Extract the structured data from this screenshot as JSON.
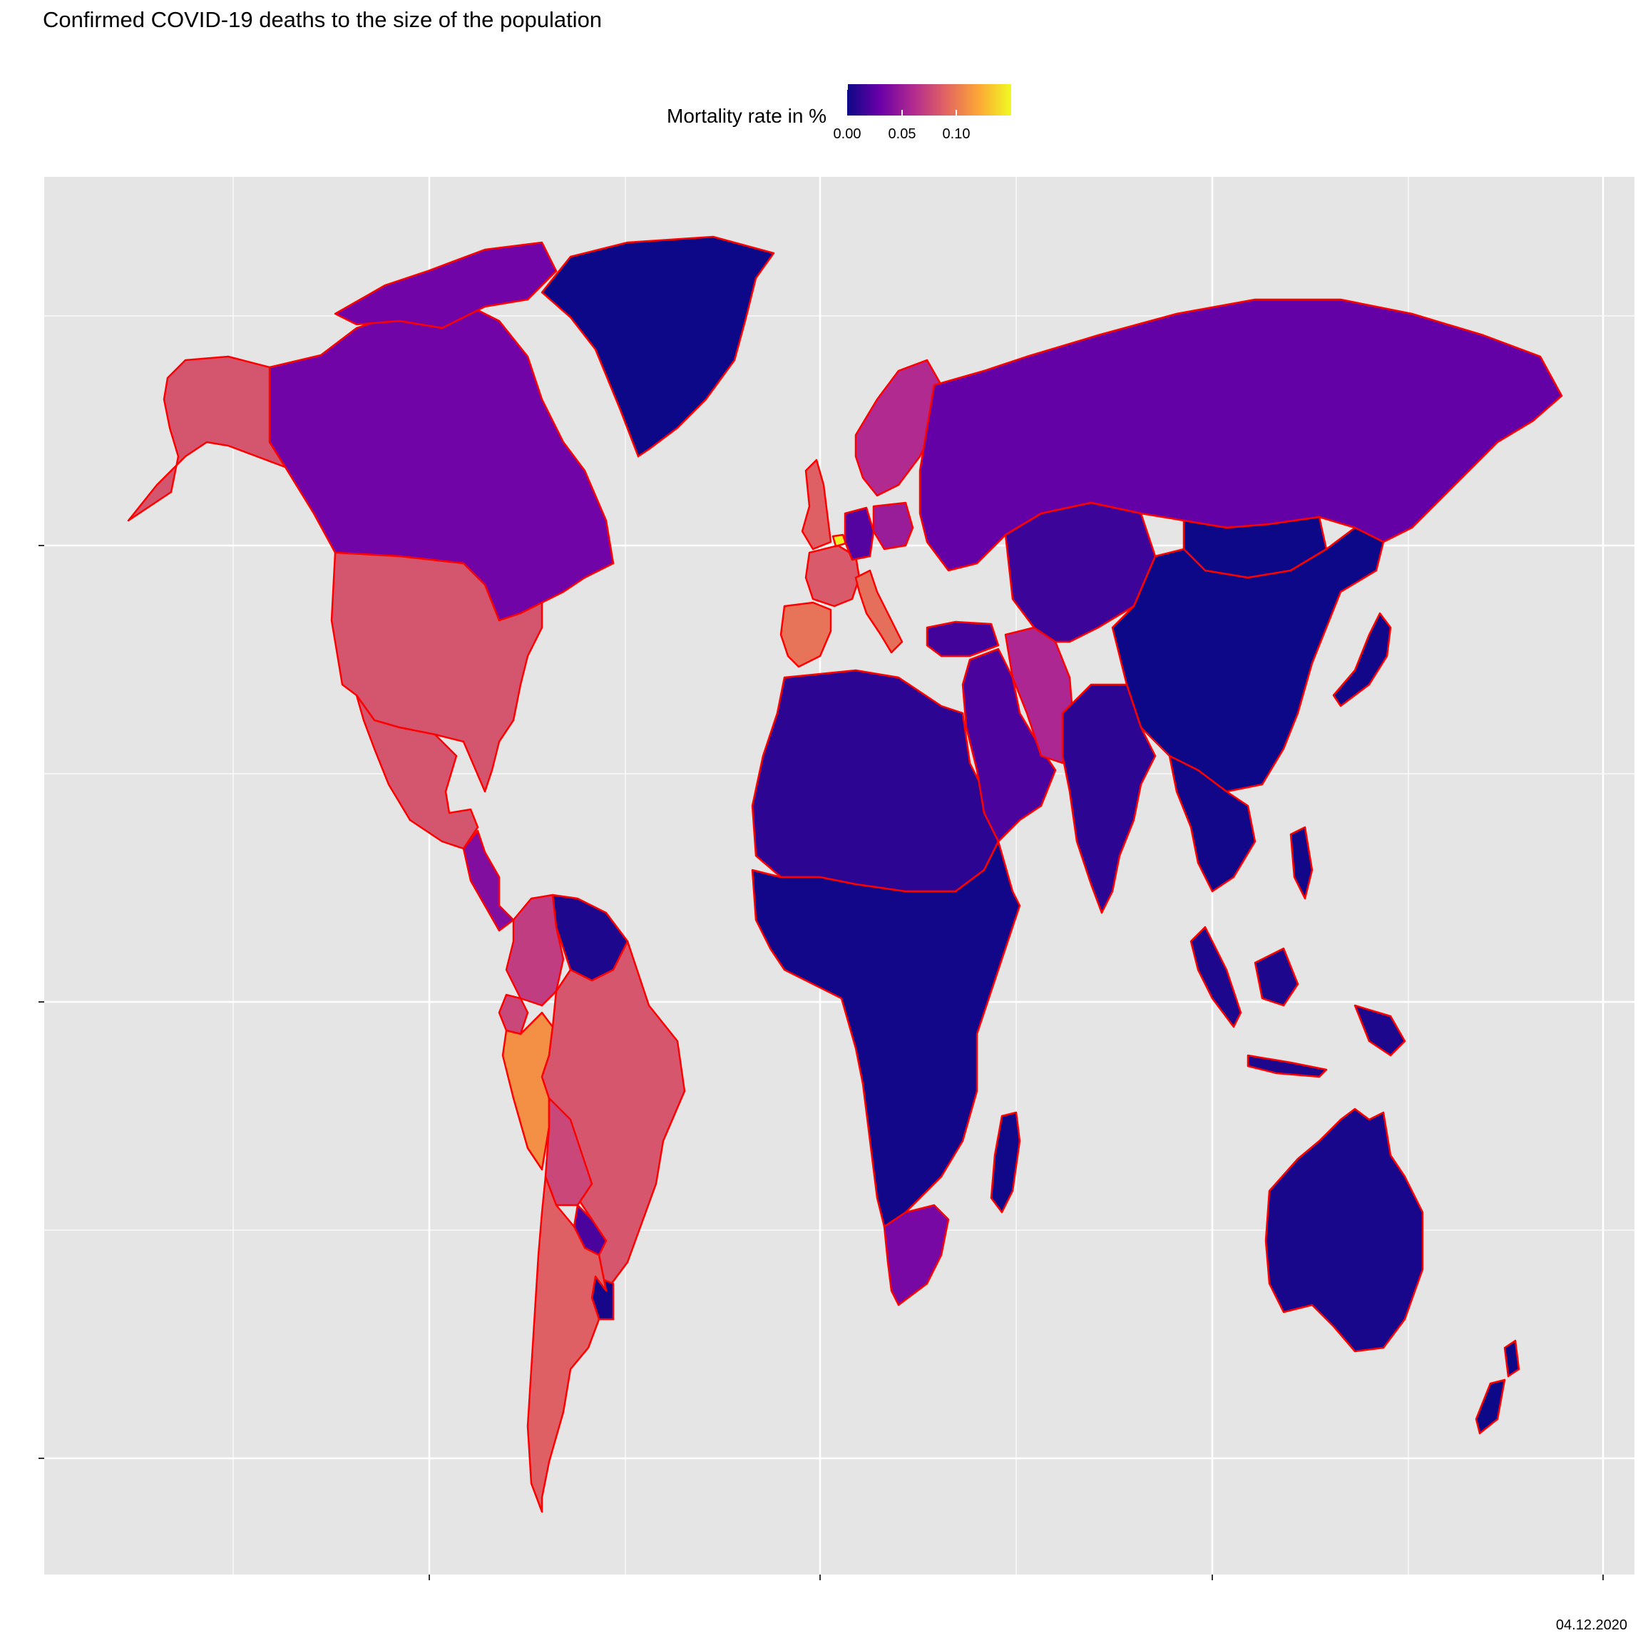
{
  "title": "Confirmed COVID-19 deaths to the size of the population",
  "caption": "04.12.2020",
  "legend": {
    "title": "Mortality rate in %",
    "tick_labels": [
      "0.00",
      "0.05",
      "0.10"
    ],
    "colors": [
      "#0d0887",
      "#6a00a8",
      "#b12a90",
      "#e16462",
      "#fca636",
      "#f0f921"
    ],
    "range": [
      0,
      0.15
    ]
  },
  "colors": {
    "panel_background": "#e5e5e5",
    "gridline": "#ffffff",
    "border": "#ff0000"
  },
  "chart_data": {
    "type": "choropleth",
    "value_key": "Mortality rate in %",
    "grid": true,
    "legend_position": "top",
    "regions": [
      {
        "id": "greenland",
        "value": 0.0
      },
      {
        "id": "canada",
        "value": 0.033
      },
      {
        "id": "alaska",
        "value": 0.082
      },
      {
        "id": "usa",
        "value": 0.082
      },
      {
        "id": "mexico",
        "value": 0.082
      },
      {
        "id": "central-america",
        "value": 0.04
      },
      {
        "id": "colombia",
        "value": 0.07
      },
      {
        "id": "venezuela-guianas",
        "value": 0.005
      },
      {
        "id": "ecuador",
        "value": 0.075
      },
      {
        "id": "peru",
        "value": 0.11
      },
      {
        "id": "brazil",
        "value": 0.083
      },
      {
        "id": "bolivia",
        "value": 0.075
      },
      {
        "id": "paraguay",
        "value": 0.02
      },
      {
        "id": "uruguay",
        "value": 0.003
      },
      {
        "id": "argentina-chile",
        "value": 0.088
      },
      {
        "id": "uk",
        "value": 0.088
      },
      {
        "id": "france",
        "value": 0.085
      },
      {
        "id": "spain",
        "value": 0.097
      },
      {
        "id": "italy",
        "value": 0.095
      },
      {
        "id": "belgium",
        "value": 0.146
      },
      {
        "id": "germany",
        "value": 0.023
      },
      {
        "id": "poland",
        "value": 0.05
      },
      {
        "id": "scandinavia",
        "value": 0.06
      },
      {
        "id": "russia",
        "value": 0.028
      },
      {
        "id": "turkey",
        "value": 0.017
      },
      {
        "id": "iran",
        "value": 0.058
      },
      {
        "id": "middle-east",
        "value": 0.02
      },
      {
        "id": "kazakhstan-central-asia",
        "value": 0.015
      },
      {
        "id": "mongolia",
        "value": 0.0
      },
      {
        "id": "china",
        "value": 0.0
      },
      {
        "id": "india",
        "value": 0.01
      },
      {
        "id": "southeast-asia",
        "value": 0.002
      },
      {
        "id": "japan",
        "value": 0.002
      },
      {
        "id": "indonesia",
        "value": 0.005
      },
      {
        "id": "australia",
        "value": 0.004
      },
      {
        "id": "new-zealand",
        "value": 0.0
      },
      {
        "id": "north-africa",
        "value": 0.01
      },
      {
        "id": "sub-saharan-africa",
        "value": 0.002
      },
      {
        "id": "south-africa",
        "value": 0.036
      },
      {
        "id": "madagascar",
        "value": 0.001
      }
    ]
  }
}
